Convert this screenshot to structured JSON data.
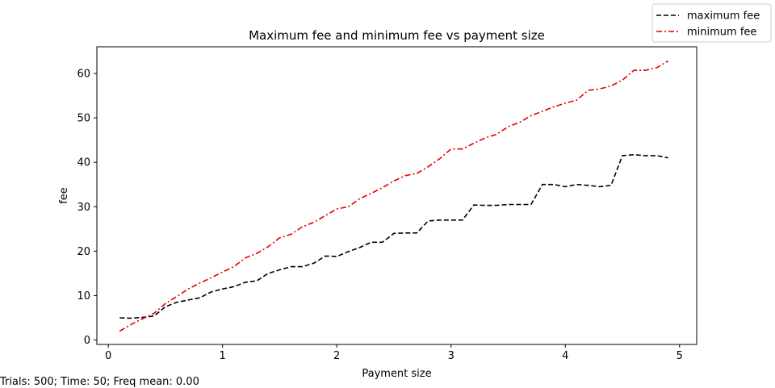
{
  "chart_data": {
    "type": "line",
    "title": "Maximum fee and minimum fee vs payment size",
    "xlabel": "Payment size",
    "ylabel": "fee",
    "xlim": [
      -0.1,
      5.15
    ],
    "ylim": [
      -1,
      66
    ],
    "xticks": [
      0,
      1,
      2,
      3,
      4,
      5
    ],
    "yticks": [
      0,
      10,
      20,
      30,
      40,
      50,
      60
    ],
    "grid": false,
    "legend_position": "top-right outside",
    "series": [
      {
        "name": "maximum fee",
        "color": "#000000",
        "style": "dashed",
        "x": [
          0.1,
          0.2,
          0.3,
          0.4,
          0.5,
          0.6,
          0.7,
          0.8,
          0.9,
          1.0,
          1.1,
          1.2,
          1.3,
          1.4,
          1.5,
          1.6,
          1.7,
          1.8,
          1.9,
          2.0,
          2.1,
          2.2,
          2.3,
          2.4,
          2.5,
          2.6,
          2.7,
          2.8,
          2.9,
          3.0,
          3.1,
          3.2,
          3.3,
          3.4,
          3.5,
          3.6,
          3.7,
          3.8,
          3.9,
          4.0,
          4.1,
          4.2,
          4.3,
          4.4,
          4.5,
          4.6,
          4.7,
          4.8,
          4.9
        ],
        "y": [
          5.0,
          4.9,
          5.1,
          5.4,
          7.5,
          8.5,
          9.0,
          9.5,
          10.8,
          11.5,
          12.0,
          13.0,
          13.3,
          15.0,
          15.8,
          16.5,
          16.5,
          17.3,
          18.9,
          18.8,
          19.9,
          20.8,
          22.0,
          22.0,
          24.0,
          24.1,
          24.1,
          26.8,
          27.0,
          27.0,
          27.0,
          30.4,
          30.3,
          30.3,
          30.5,
          30.5,
          30.5,
          35.0,
          35.0,
          34.5,
          35.0,
          34.8,
          34.5,
          34.8,
          41.5,
          41.7,
          41.5,
          41.5,
          41.0
        ]
      },
      {
        "name": "minimum fee",
        "color": "#e00000",
        "style": "dashdot",
        "x": [
          0.1,
          0.2,
          0.3,
          0.4,
          0.5,
          0.6,
          0.7,
          0.8,
          0.9,
          1.0,
          1.1,
          1.2,
          1.3,
          1.4,
          1.5,
          1.6,
          1.7,
          1.8,
          1.9,
          2.0,
          2.1,
          2.2,
          2.3,
          2.4,
          2.5,
          2.6,
          2.7,
          2.8,
          2.9,
          3.0,
          3.1,
          3.2,
          3.3,
          3.4,
          3.5,
          3.6,
          3.7,
          3.8,
          3.9,
          4.0,
          4.1,
          4.2,
          4.3,
          4.4,
          4.5,
          4.6,
          4.7,
          4.8,
          4.9
        ],
        "y": [
          2.0,
          3.5,
          4.8,
          6.0,
          8.2,
          9.8,
          11.5,
          12.8,
          14.0,
          15.3,
          16.5,
          18.5,
          19.5,
          21.0,
          23.0,
          23.8,
          25.5,
          26.5,
          28.0,
          29.5,
          30.0,
          31.8,
          33.0,
          34.3,
          35.8,
          37.0,
          37.5,
          39.0,
          40.8,
          43.0,
          43.0,
          44.3,
          45.5,
          46.3,
          48.0,
          49.0,
          50.5,
          51.5,
          52.5,
          53.3,
          54.0,
          56.2,
          56.5,
          57.2,
          58.5,
          60.7,
          60.7,
          61.3,
          62.8
        ]
      }
    ]
  },
  "footer_text": "Trials: 500; Time: 50; Freq mean: 0.00"
}
